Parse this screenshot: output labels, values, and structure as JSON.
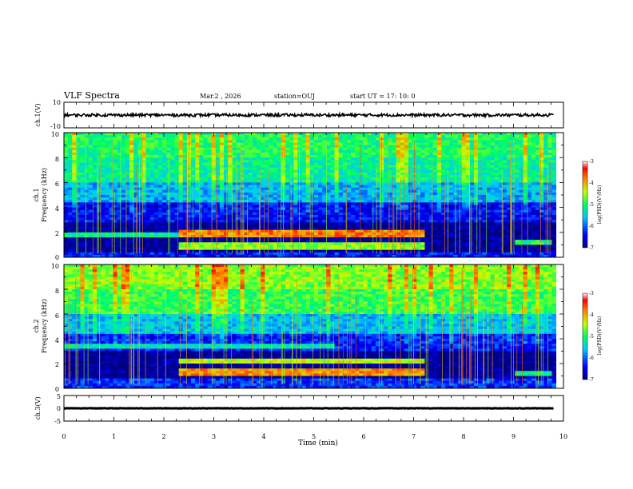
{
  "header": {
    "title": "VLF Spectra",
    "date": "Mar.2 , 2026",
    "station": "station=OUJ",
    "start_time": "start UT = 17: 10: 0"
  },
  "chart_data": [
    {
      "type": "line",
      "ylabel": "ch.1(V)",
      "ylim": [
        -10,
        10
      ],
      "yticks": [
        "10",
        "-10"
      ],
      "x": [
        0,
        1,
        2,
        3,
        4,
        5,
        6,
        7,
        8,
        9,
        9.8
      ],
      "values": [
        0,
        0,
        0,
        0,
        0,
        0,
        0,
        0,
        0,
        0,
        0
      ],
      "color": "#000000"
    },
    {
      "type": "heatmap",
      "ylabel": "ch.1\nFrequency (kHz)",
      "ylim": [
        0,
        10
      ],
      "yticks": [
        "0",
        "2",
        "4",
        "6",
        "8",
        "10"
      ],
      "colorbar": {
        "label": "log(PSD)(V²/Hz)",
        "ticks": [
          "-3",
          "-4",
          "-5",
          "-6",
          "-7"
        ],
        "range": [
          -7,
          -3
        ]
      },
      "background_levels": [
        {
          "band": [
            0,
            0.5
          ],
          "level": -6.3
        },
        {
          "band": [
            0.5,
            2.8
          ],
          "level": -6.9
        },
        {
          "band": [
            2.8,
            4.5
          ],
          "level": -6.4
        },
        {
          "band": [
            4.5,
            6
          ],
          "level": -5.7
        },
        {
          "band": [
            6,
            8
          ],
          "level": -5.2
        },
        {
          "band": [
            8,
            10
          ],
          "level": -5.0
        }
      ],
      "emission_bands": [
        {
          "t": [
            0,
            2.3
          ],
          "f": [
            1.7,
            2.0
          ],
          "level": -5.2
        },
        {
          "t": [
            2.3,
            7.2
          ],
          "f": [
            1.7,
            2.2
          ],
          "level": -3.8
        },
        {
          "t": [
            2.3,
            7.2
          ],
          "f": [
            0.6,
            1.2
          ],
          "level": -4.6
        },
        {
          "t": [
            9.0,
            9.8
          ],
          "f": [
            1.0,
            1.4
          ],
          "level": -5.0
        }
      ]
    },
    {
      "type": "heatmap",
      "ylabel": "ch.2\nFrequency (kHz)",
      "ylim": [
        0,
        10
      ],
      "yticks": [
        "0",
        "2",
        "4",
        "6",
        "8",
        "10"
      ],
      "colorbar": {
        "label": "log(PSD)(V²/Hz)",
        "ticks": [
          "-3",
          "-4",
          "-5",
          "-6",
          "-7"
        ],
        "range": [
          -7,
          -3
        ]
      },
      "background_levels": [
        {
          "band": [
            0,
            0.8
          ],
          "level": -6.2
        },
        {
          "band": [
            0.8,
            3.0
          ],
          "level": -6.9
        },
        {
          "band": [
            3.0,
            4.5
          ],
          "level": -6.3
        },
        {
          "band": [
            4.5,
            6
          ],
          "level": -5.6
        },
        {
          "band": [
            6,
            8
          ],
          "level": -4.9
        },
        {
          "band": [
            8,
            10
          ],
          "level": -4.6
        }
      ],
      "emission_bands": [
        {
          "t": [
            0,
            5.4
          ],
          "f": [
            3.2,
            3.6
          ],
          "level": -5.3
        },
        {
          "t": [
            2.3,
            7.2
          ],
          "f": [
            2.0,
            2.4
          ],
          "level": -4.4
        },
        {
          "t": [
            2.3,
            7.2
          ],
          "f": [
            1.0,
            1.5
          ],
          "level": -3.9
        },
        {
          "t": [
            9.0,
            9.8
          ],
          "f": [
            1.0,
            1.4
          ],
          "level": -5.2
        }
      ]
    },
    {
      "type": "line",
      "ylabel": "ch.3(V)",
      "ylim": [
        -5,
        5
      ],
      "yticks": [
        "5",
        "0",
        "-5"
      ],
      "x": [
        0,
        9.8
      ],
      "values": [
        0,
        0
      ],
      "color": "#000000"
    }
  ],
  "x_axis": {
    "label": "Time (min)",
    "range": [
      0,
      10
    ],
    "ticks": [
      "0",
      "1",
      "2",
      "3",
      "4",
      "5",
      "6",
      "7",
      "8",
      "9",
      "10"
    ]
  }
}
